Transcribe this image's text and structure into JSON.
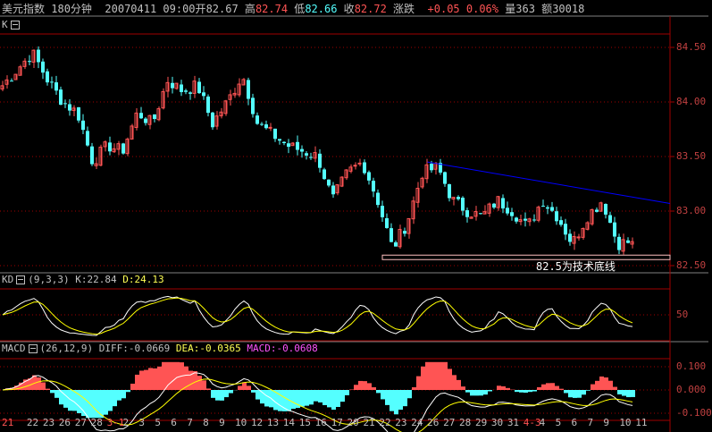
{
  "header": {
    "name": "美元指数",
    "period": "180分钟",
    "datetime": "20070411 09:00",
    "open_label": "开",
    "open": "82.67",
    "high_label": "高",
    "high": "82.74",
    "low_label": "低",
    "low": "82.66",
    "close_label": "收",
    "close": "82.72",
    "change_label": "涨跌",
    "change": "+0.05",
    "change_pct": "0.06%",
    "volume_label": "量",
    "volume": "363",
    "amount_label": "额",
    "amount": "30018"
  },
  "main": {
    "label": "K",
    "annotation": "82.5为技术底线",
    "y_ticks": [
      "84.50",
      "84.00",
      "83.50",
      "83.00",
      "82.50"
    ],
    "y_values": [
      84.5,
      84.0,
      83.5,
      83.0,
      82.5
    ],
    "close_anchors": [
      84.15,
      84.3,
      84.45,
      84.2,
      84.0,
      83.9,
      83.45,
      83.6,
      83.55,
      83.9,
      83.8,
      84.2,
      84.1,
      84.15,
      83.8,
      84.0,
      84.25,
      83.8,
      83.7,
      83.6,
      83.55,
      83.5,
      83.1,
      83.35,
      83.45,
      83.1,
      82.65,
      82.9,
      83.35,
      83.4,
      83.1,
      83.0,
      82.95,
      83.1,
      83.0,
      82.85,
      83.1,
      82.95,
      82.7,
      82.95,
      83.1,
      82.7,
      82.72
    ],
    "trendline": [
      [
        0.675,
        83.45
      ],
      [
        1.055,
        83.07
      ]
    ],
    "support": 82.58,
    "colors": {
      "up": "#ff5454",
      "down": "#54ffff",
      "trend": "#0000ff"
    }
  },
  "kd": {
    "label": "KD",
    "params": "(9,3,3)",
    "k": "K:22.84",
    "d": "D:24.13",
    "y_tick": "50"
  },
  "macd": {
    "label": "MACD",
    "params": "(26,12,9)",
    "diff": "DIFF:-0.0669",
    "dea": "DEA:-0.0365",
    "macd": "MACD:-0.0608",
    "y_ticks": [
      "0.100",
      "0.000",
      "-0.100"
    ]
  },
  "dates": [
    {
      "t": "21",
      "red": true
    },
    {
      "t": "22"
    },
    {
      "t": "23"
    },
    {
      "t": "26"
    },
    {
      "t": "27"
    },
    {
      "t": "28"
    },
    {
      "t": "3-1",
      "red": true
    },
    {
      "t": "2"
    },
    {
      "t": "3"
    },
    {
      "t": "5"
    },
    {
      "t": "6"
    },
    {
      "t": "7"
    },
    {
      "t": "8"
    },
    {
      "t": "9"
    },
    {
      "t": "10"
    },
    {
      "t": "12"
    },
    {
      "t": "13"
    },
    {
      "t": "14"
    },
    {
      "t": "15"
    },
    {
      "t": "16"
    },
    {
      "t": "17"
    },
    {
      "t": "20"
    },
    {
      "t": "21"
    },
    {
      "t": "22"
    },
    {
      "t": "23"
    },
    {
      "t": "24"
    },
    {
      "t": "26"
    },
    {
      "t": "27"
    },
    {
      "t": "28"
    },
    {
      "t": "29"
    },
    {
      "t": "30"
    },
    {
      "t": "31"
    },
    {
      "t": "4-3",
      "red": true
    },
    {
      "t": "4"
    },
    {
      "t": "5"
    },
    {
      "t": "6"
    },
    {
      "t": "7"
    },
    {
      "t": "9"
    },
    {
      "t": "10"
    },
    {
      "t": "11"
    }
  ]
}
